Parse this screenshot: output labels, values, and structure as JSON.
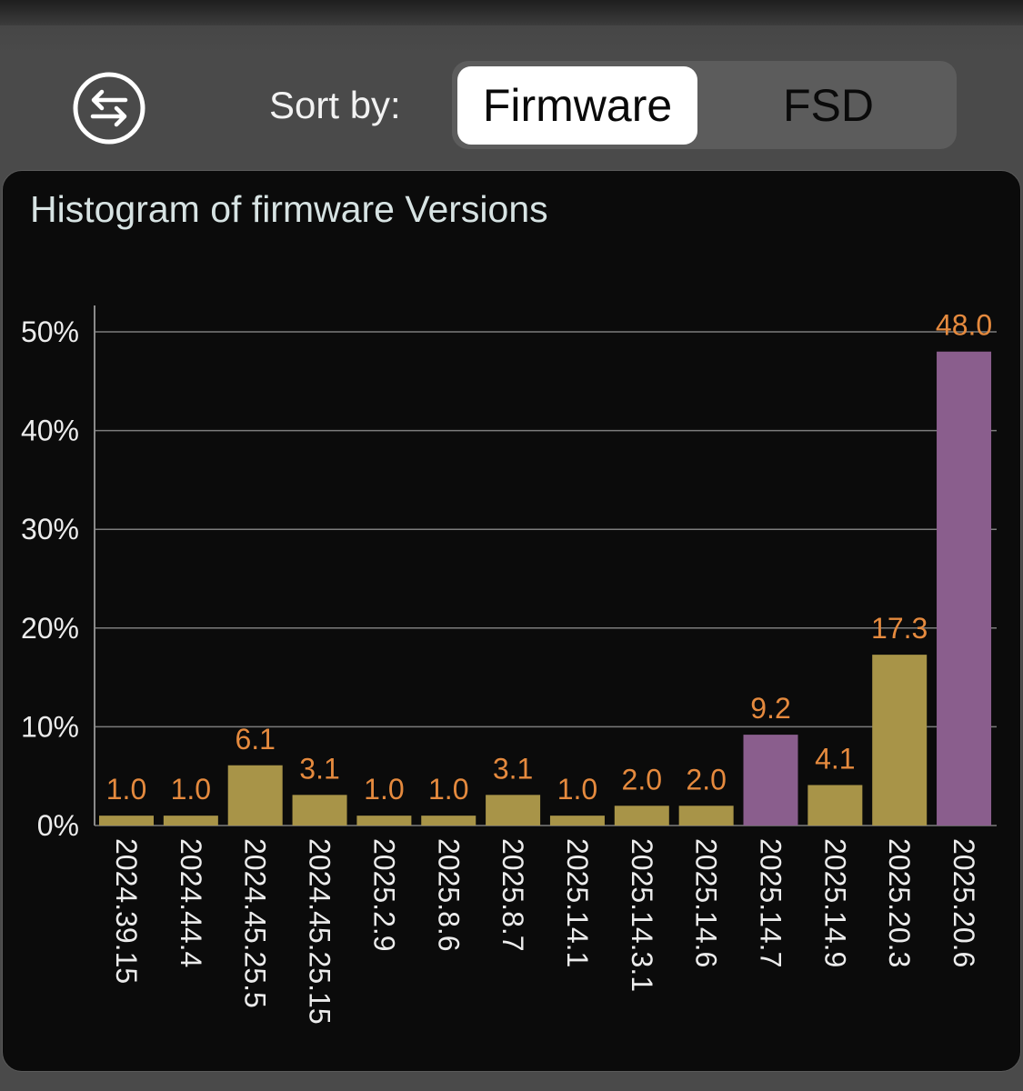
{
  "header": {
    "sort_label": "Sort by:",
    "segments": [
      {
        "label": "Firmware",
        "selected": true
      },
      {
        "label": "FSD",
        "selected": false
      }
    ],
    "swap_icon": "swap-arrows-icon"
  },
  "colors": {
    "bar_default": "#a89448",
    "bar_highlight": "#8a5e8d",
    "data_label": "#e58a3e"
  },
  "chart_data": {
    "type": "bar",
    "title": "Histogram of firmware Versions",
    "categories": [
      "2024.39.15",
      "2024.44.4",
      "2024.45.25.5",
      "2024.45.25.15",
      "2025.2.9",
      "2025.8.6",
      "2025.8.7",
      "2025.14.1",
      "2025.14.3.1",
      "2025.14.6",
      "2025.14.7",
      "2025.14.9",
      "2025.20.3",
      "2025.20.6"
    ],
    "values": [
      1.0,
      1.0,
      6.1,
      3.1,
      1.0,
      1.0,
      3.1,
      1.0,
      2.0,
      2.0,
      9.2,
      4.1,
      17.3,
      48.0
    ],
    "data_labels": [
      "1.0",
      "1.0",
      "6.1",
      "3.1",
      "1.0",
      "1.0",
      "3.1",
      "1.0",
      "2.0",
      "2.0",
      "9.2",
      "4.1",
      "17.3",
      "48.0"
    ],
    "highlighted": [
      false,
      false,
      false,
      false,
      false,
      false,
      false,
      false,
      false,
      false,
      true,
      false,
      false,
      true
    ],
    "yticks": [
      0,
      10,
      20,
      30,
      40,
      50
    ],
    "ytick_labels": [
      "0%",
      "10%",
      "20%",
      "30%",
      "40%",
      "50%"
    ],
    "ylim": [
      0,
      50
    ],
    "grid": true,
    "xlabel": "",
    "ylabel": ""
  }
}
